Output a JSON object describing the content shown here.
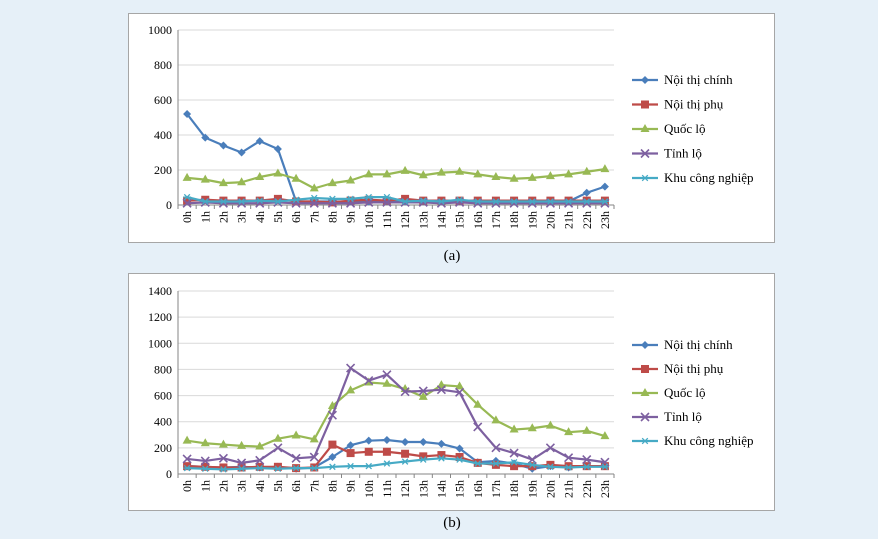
{
  "chart_data": [
    {
      "type": "line",
      "caption": "(a)",
      "categories": [
        "0h",
        "1h",
        "2h",
        "3h",
        "4h",
        "5h",
        "6h",
        "7h",
        "8h",
        "9h",
        "10h",
        "11h",
        "12h",
        "13h",
        "14h",
        "15h",
        "16h",
        "17h",
        "18h",
        "19h",
        "20h",
        "21h",
        "22h",
        "23h"
      ],
      "ylim": [
        0,
        1000
      ],
      "yticks": [
        "0",
        "200",
        "400",
        "600",
        "800",
        "1000"
      ],
      "grid": true,
      "legend": "right",
      "series": [
        {
          "name": "Nội thị chính",
          "color": "#4a7ebb",
          "marker": "diamond",
          "values": [
            520,
            385,
            340,
            300,
            365,
            320,
            20,
            20,
            20,
            20,
            20,
            20,
            20,
            20,
            20,
            20,
            20,
            20,
            20,
            20,
            20,
            20,
            70,
            105
          ]
        },
        {
          "name": "Nội thị phụ",
          "color": "#be4b48",
          "marker": "square",
          "values": [
            25,
            30,
            25,
            25,
            25,
            35,
            20,
            20,
            15,
            25,
            30,
            25,
            35,
            25,
            25,
            25,
            25,
            25,
            25,
            25,
            25,
            25,
            25,
            25
          ]
        },
        {
          "name": "Quốc lộ",
          "color": "#98b954",
          "marker": "triangle",
          "values": [
            155,
            145,
            125,
            130,
            160,
            180,
            150,
            95,
            125,
            140,
            175,
            175,
            195,
            170,
            185,
            190,
            175,
            160,
            150,
            155,
            165,
            175,
            190,
            205
          ]
        },
        {
          "name": "Tỉnh lộ",
          "color": "#7d60a0",
          "marker": "x",
          "values": [
            10,
            15,
            10,
            10,
            10,
            15,
            10,
            10,
            10,
            10,
            15,
            15,
            15,
            15,
            10,
            15,
            10,
            10,
            10,
            10,
            10,
            10,
            10,
            10
          ]
        },
        {
          "name": "Khu công nghiệp",
          "color": "#46aac5",
          "marker": "star",
          "values": [
            45,
            20,
            20,
            20,
            25,
            20,
            30,
            40,
            35,
            35,
            45,
            45,
            20,
            25,
            20,
            30,
            20,
            20,
            20,
            20,
            20,
            20,
            20,
            20
          ]
        }
      ]
    },
    {
      "type": "line",
      "caption": "(b)",
      "categories": [
        "0h",
        "1h",
        "2h",
        "3h",
        "4h",
        "5h",
        "6h",
        "7h",
        "8h",
        "9h",
        "10h",
        "11h",
        "12h",
        "13h",
        "14h",
        "15h",
        "16h",
        "17h",
        "18h",
        "19h",
        "20h",
        "21h",
        "22h",
        "23h"
      ],
      "ylim": [
        0,
        1400
      ],
      "yticks": [
        "0",
        "200",
        "400",
        "600",
        "800",
        "1000",
        "1200",
        "1400"
      ],
      "grid": true,
      "legend": "right",
      "series": [
        {
          "name": "Nội thị chính",
          "color": "#4a7ebb",
          "marker": "diamond",
          "values": [
            60,
            55,
            50,
            55,
            50,
            55,
            40,
            50,
            130,
            220,
            255,
            260,
            245,
            245,
            230,
            195,
            90,
            100,
            80,
            40,
            60,
            50,
            60,
            60
          ]
        },
        {
          "name": "Nội thị phụ",
          "color": "#be4b48",
          "marker": "square",
          "values": [
            60,
            55,
            50,
            50,
            55,
            55,
            45,
            50,
            225,
            160,
            170,
            170,
            155,
            135,
            145,
            130,
            85,
            70,
            60,
            60,
            70,
            60,
            60,
            60
          ]
        },
        {
          "name": "Quốc lộ",
          "color": "#98b954",
          "marker": "triangle",
          "values": [
            255,
            235,
            225,
            215,
            210,
            270,
            295,
            265,
            520,
            640,
            700,
            690,
            650,
            590,
            680,
            670,
            530,
            410,
            340,
            350,
            370,
            320,
            330,
            290
          ]
        },
        {
          "name": "Tỉnh lộ",
          "color": "#7d60a0",
          "marker": "x",
          "values": [
            115,
            100,
            120,
            85,
            105,
            200,
            120,
            130,
            450,
            810,
            715,
            760,
            630,
            635,
            645,
            625,
            360,
            200,
            160,
            110,
            200,
            125,
            110,
            90
          ]
        },
        {
          "name": "Khu công nghiệp",
          "color": "#46aac5",
          "marker": "star",
          "values": [
            45,
            40,
            35,
            40,
            45,
            40,
            45,
            45,
            55,
            60,
            60,
            80,
            95,
            110,
            120,
            110,
            80,
            80,
            90,
            70,
            55,
            50,
            55,
            55
          ]
        }
      ]
    }
  ]
}
